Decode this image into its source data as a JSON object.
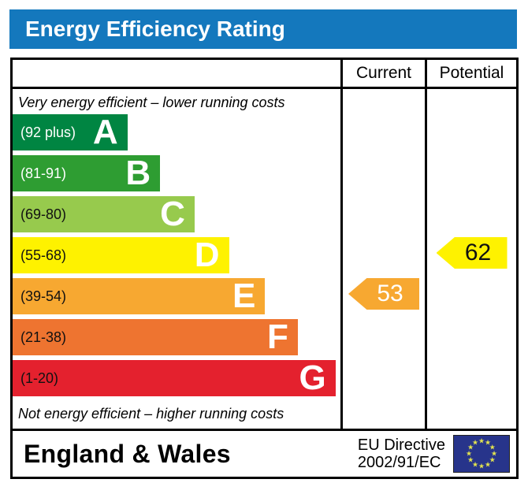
{
  "title": "Energy Efficiency Rating",
  "colors": {
    "title_bar_bg": "#1478bd",
    "title_text": "#ffffff",
    "border": "#000000",
    "eu_flag_bg": "#27348b",
    "eu_flag_stars": "#e3e34f"
  },
  "table": {
    "current_header": "Current",
    "potential_header": "Potential"
  },
  "chart_data": {
    "type": "bar",
    "subtype": "epc-energy-efficiency-rating",
    "title": "Energy Efficiency Rating",
    "top_note": "Very energy efficient – lower running costs",
    "bottom_note": "Not energy efficient – higher running costs",
    "bands": [
      {
        "letter": "A",
        "range_label": "(92 plus)",
        "score_min": 92,
        "score_max": 100,
        "color": "#008542",
        "label_color": "#ffffff",
        "width_pct": 35
      },
      {
        "letter": "B",
        "range_label": "(81-91)",
        "score_min": 81,
        "score_max": 91,
        "color": "#2e9d32",
        "label_color": "#ffffff",
        "width_pct": 45
      },
      {
        "letter": "C",
        "range_label": "(69-80)",
        "score_min": 69,
        "score_max": 80,
        "color": "#97ca4d",
        "label_color": "#111111",
        "width_pct": 55.5
      },
      {
        "letter": "D",
        "range_label": "(55-68)",
        "score_min": 55,
        "score_max": 68,
        "color": "#fef200",
        "label_color": "#111111",
        "width_pct": 66
      },
      {
        "letter": "E",
        "range_label": "(39-54)",
        "score_min": 39,
        "score_max": 54,
        "color": "#f7a831",
        "label_color": "#111111",
        "width_pct": 77
      },
      {
        "letter": "F",
        "range_label": "(21-38)",
        "score_min": 21,
        "score_max": 38,
        "color": "#ee7430",
        "label_color": "#111111",
        "width_pct": 87
      },
      {
        "letter": "G",
        "range_label": "(1-20)",
        "score_min": 1,
        "score_max": 20,
        "color": "#e4212e",
        "label_color": "#111111",
        "width_pct": 98.5
      }
    ],
    "markers": {
      "current": {
        "value": 53,
        "band": "E",
        "arrow_color": "#f7a831",
        "text_color": "#ffffff"
      },
      "potential": {
        "value": 62,
        "band": "D",
        "arrow_color": "#fef200",
        "text_color": "#111111"
      }
    }
  },
  "footer": {
    "region_label": "England & Wales",
    "directive_line1": "EU Directive",
    "directive_line2": "2002/91/EC"
  }
}
